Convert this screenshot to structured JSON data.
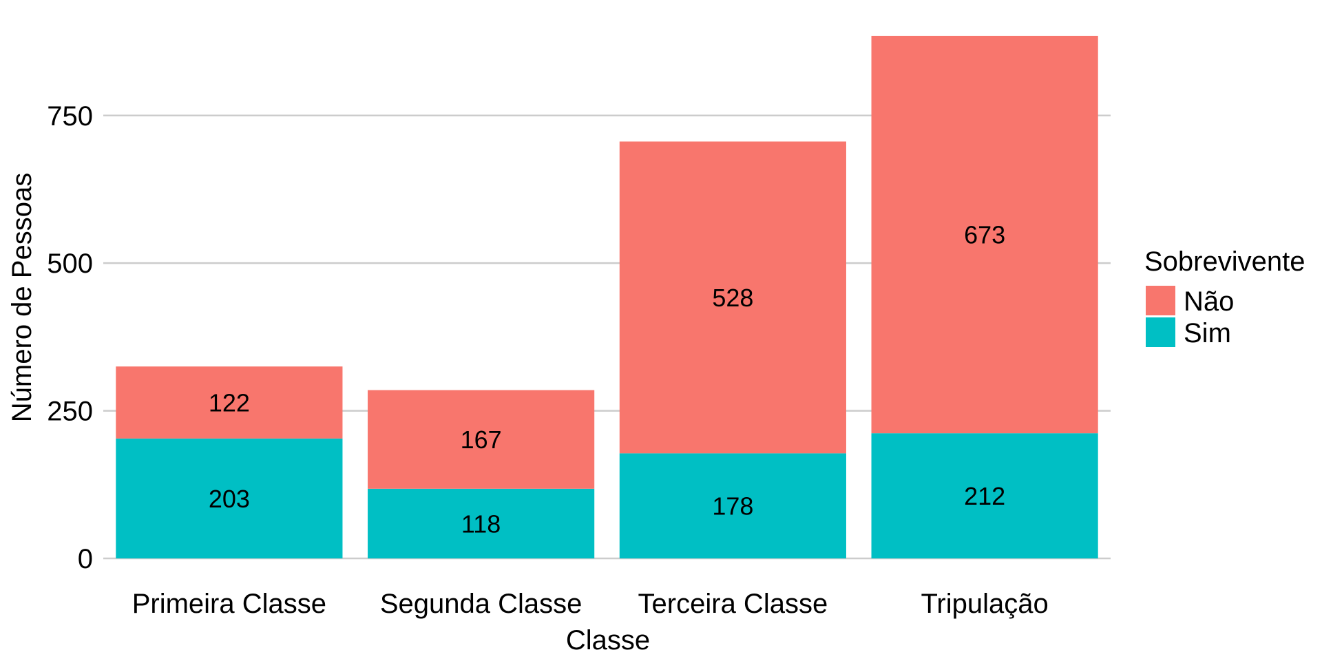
{
  "chart_data": {
    "type": "bar",
    "stacked": true,
    "categories": [
      "Primeira Classe",
      "Segunda Classe",
      "Terceira Classe",
      "Tripulação"
    ],
    "series": [
      {
        "name": "Sim",
        "values": [
          203,
          118,
          178,
          212
        ],
        "color": "#00BFC4"
      },
      {
        "name": "Não",
        "values": [
          122,
          167,
          528,
          673
        ],
        "color": "#F8766D"
      }
    ],
    "xlabel": "Classe",
    "ylabel": "Número de Pessoas",
    "ylim": [
      0,
      885
    ],
    "yticks": [
      0,
      250,
      500,
      750
    ],
    "grid": true,
    "legend": {
      "title": "Sobrevivente",
      "position": "right",
      "entries": [
        {
          "label": "Não",
          "color": "#F8766D"
        },
        {
          "label": "Sim",
          "color": "#00BFC4"
        }
      ]
    }
  }
}
